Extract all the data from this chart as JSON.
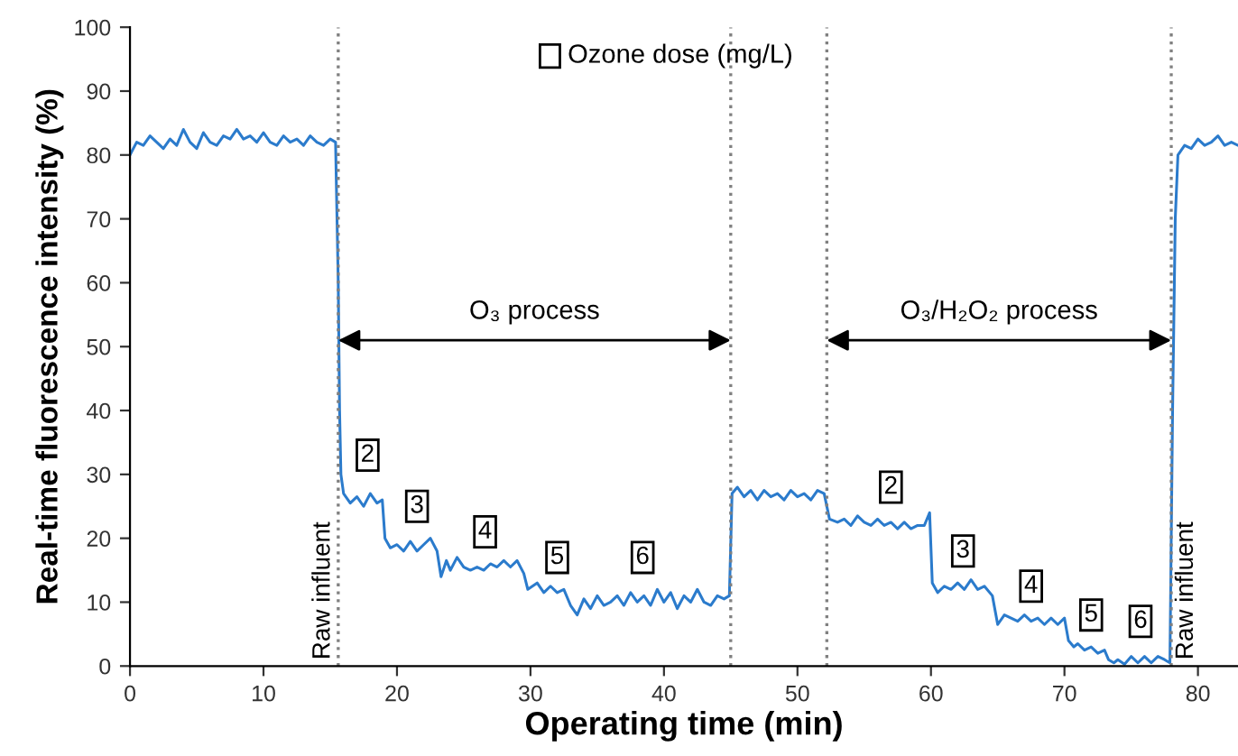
{
  "chart_data": {
    "type": "line",
    "xlabel": "Operating time (min)",
    "ylabel": "Real-time fluorescence intensity (%)",
    "xlim": [
      0,
      83
    ],
    "xticks": [
      0,
      10,
      20,
      30,
      40,
      50,
      60,
      70,
      80
    ],
    "ylim": [
      0,
      100
    ],
    "yticks": [
      0,
      10,
      20,
      30,
      40,
      50,
      60,
      70,
      80,
      90,
      100
    ],
    "grid": false,
    "marker": "none",
    "line_style": "solid",
    "series": [
      {
        "color": "#2b7bcc",
        "x": [
          0,
          0.5,
          1,
          1.5,
          2,
          2.5,
          3,
          3.5,
          4,
          4.5,
          5,
          5.5,
          6,
          6.5,
          7,
          7.5,
          8,
          8.5,
          9,
          9.5,
          10,
          10.5,
          11,
          11.5,
          12,
          12.5,
          13,
          13.5,
          14,
          14.5,
          15,
          15.4,
          15.6,
          15.7,
          15.8,
          16,
          16.5,
          17,
          17.5,
          18,
          18.5,
          18.9,
          19.1,
          19.5,
          20,
          20.5,
          21,
          21.5,
          22,
          22.5,
          23,
          23.3,
          23.7,
          24,
          24.5,
          25,
          25.5,
          26,
          26.5,
          27,
          27.5,
          28,
          28.5,
          29,
          29.5,
          29.8,
          30.5,
          31,
          31.5,
          32,
          32.5,
          33,
          33.5,
          34,
          34.5,
          35,
          35.5,
          36,
          36.5,
          37,
          37.5,
          38,
          38.5,
          39,
          39.5,
          40,
          40.5,
          41,
          41.5,
          42,
          42.5,
          43,
          43.5,
          44,
          44.5,
          44.9,
          45.1,
          45.5,
          46,
          46.5,
          47,
          47.5,
          48,
          48.5,
          49,
          49.5,
          50,
          50.5,
          51,
          51.5,
          52,
          52.4,
          53,
          53.5,
          54,
          54.5,
          55,
          55.5,
          56,
          56.5,
          57,
          57.5,
          58,
          58.5,
          59,
          59.5,
          59.9,
          60.1,
          60.5,
          61,
          61.5,
          62,
          62.5,
          63,
          63.5,
          64,
          64.6,
          65,
          65.5,
          66,
          66.5,
          67,
          67.5,
          68,
          68.5,
          69,
          69.5,
          70,
          70.3,
          70.7,
          71,
          71.5,
          72,
          72.5,
          73,
          73.3,
          73.7,
          74,
          74.5,
          75,
          75.5,
          76,
          76.5,
          77,
          77.5,
          77.9,
          78.1,
          78.3,
          78.5,
          79,
          79.5,
          80,
          80.5,
          81,
          81.5,
          82,
          82.5,
          83
        ],
        "values": [
          80,
          82,
          81.5,
          83,
          82,
          81,
          82.5,
          81.5,
          84,
          82,
          81,
          83.5,
          82,
          81.5,
          83,
          82.5,
          84,
          82.5,
          83,
          82,
          83.5,
          82,
          81.5,
          83,
          82,
          82.5,
          81.5,
          83,
          82,
          81.5,
          82.5,
          82,
          60,
          40,
          30,
          27,
          25.5,
          26.5,
          25,
          27,
          25.5,
          26,
          20,
          18.5,
          19,
          18,
          19.5,
          18,
          19,
          20,
          18,
          14,
          16.5,
          15,
          17,
          15.5,
          15,
          15.5,
          15,
          16,
          15.5,
          16.5,
          15.5,
          16.5,
          14.5,
          12,
          13,
          11.5,
          12.5,
          11.5,
          12,
          9.5,
          8,
          10.5,
          9,
          11,
          9.5,
          10,
          11,
          9.5,
          11.5,
          10,
          11,
          9.5,
          12,
          10,
          11.5,
          9,
          11,
          10,
          12,
          10,
          9.5,
          11,
          10.5,
          11,
          27,
          28,
          26.5,
          27.5,
          26,
          27.5,
          26.5,
          27,
          26,
          27.5,
          26.5,
          27,
          26,
          27.5,
          27,
          23,
          22.5,
          23,
          22,
          23.5,
          22.5,
          22,
          23,
          22,
          22.5,
          21.5,
          22.5,
          21.5,
          22,
          22,
          24,
          13,
          11.5,
          12.5,
          12,
          13,
          12,
          13.5,
          12,
          12.5,
          11,
          6.5,
          8,
          7.5,
          7,
          8,
          7,
          7.5,
          6.5,
          7.5,
          6.5,
          7.5,
          4,
          3,
          3.5,
          2.5,
          3,
          2,
          2.5,
          1,
          0.5,
          1,
          0.3,
          1.5,
          0.5,
          1.5,
          0.5,
          1.5,
          1,
          0.5,
          40,
          70,
          80,
          81.5,
          81,
          82.5,
          81.5,
          82,
          83,
          81.5,
          82,
          81.5
        ]
      }
    ],
    "ref_lines": [
      {
        "axis": "x",
        "value": 15.6,
        "color": "#808080",
        "line_style": "dotted"
      },
      {
        "axis": "x",
        "value": 45,
        "color": "#808080",
        "line_style": "dotted"
      },
      {
        "axis": "x",
        "value": 52.2,
        "color": "#808080",
        "line_style": "dotted"
      },
      {
        "axis": "x",
        "value": 78,
        "color": "#808080",
        "line_style": "dotted"
      }
    ],
    "annotations": [
      "Ozone dose (mg/L)",
      "O₃ process",
      "O₃/H₂O₂ process",
      "Raw influent",
      "Raw influent",
      {
        "text": "2",
        "x": 17.8,
        "y": 33
      },
      {
        "text": "3",
        "x": 21.5,
        "y": 25
      },
      {
        "text": "4",
        "x": 26.6,
        "y": 21
      },
      {
        "text": "5",
        "x": 32,
        "y": 17
      },
      {
        "text": "6",
        "x": 38.4,
        "y": 17
      },
      {
        "text": "2",
        "x": 57,
        "y": 28
      },
      {
        "text": "3",
        "x": 62.4,
        "y": 18
      },
      {
        "text": "4",
        "x": 67.5,
        "y": 12.5
      },
      {
        "text": "5",
        "x": 72,
        "y": 8
      },
      {
        "text": "6",
        "x": 75.7,
        "y": 7
      }
    ]
  }
}
